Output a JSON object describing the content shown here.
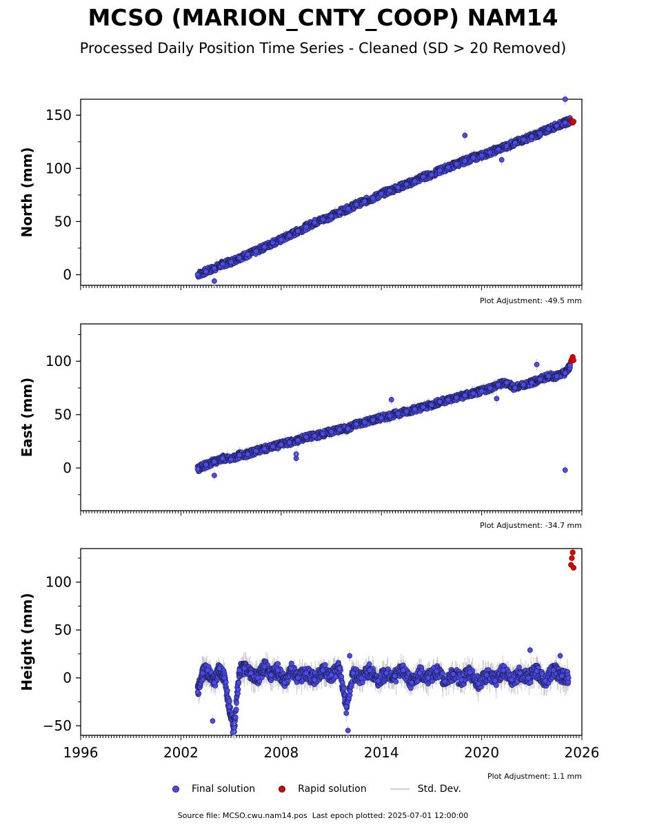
{
  "title": "MCSO (MARION_CNTY_COOP) NAM14",
  "subtitle": "Processed Daily Position Time Series - Cleaned (SD > 20 Removed)",
  "footer": {
    "source_file": "Source file: MCSO.cwu.nam14.pos",
    "last_epoch": "Last epoch plotted: 2025-07-01 12:00:00"
  },
  "legend": {
    "final": "Final solution",
    "rapid": "Rapid solution",
    "stddev": "Std. Dev."
  },
  "colors": {
    "final": "#4a4aef",
    "rapid": "#e00000",
    "stddev": "#c8c8c8",
    "edge": "#1a1a3a"
  },
  "chart_data": [
    {
      "type": "scatter",
      "ylabel": "North (mm)",
      "adjustment": "Plot Adjustment: -49.5 mm",
      "xlim": [
        1996,
        2026
      ],
      "ylim": [
        -10,
        165
      ],
      "yticks": [
        0,
        50,
        100,
        150
      ],
      "x_tick_labels": [],
      "final_series": {
        "name": "Final solution",
        "x": [
          2003.0,
          2003.5,
          2004.0,
          2004.5,
          2005.0,
          2005.5,
          2006.0,
          2006.5,
          2007.0,
          2007.5,
          2008.0,
          2008.5,
          2009.0,
          2009.5,
          2010.0,
          2010.5,
          2011.0,
          2011.5,
          2012.0,
          2012.5,
          2013.0,
          2013.5,
          2014.0,
          2014.5,
          2015.0,
          2015.5,
          2016.0,
          2016.5,
          2017.0,
          2017.5,
          2018.0,
          2018.5,
          2019.0,
          2019.5,
          2020.0,
          2020.5,
          2021.0,
          2021.5,
          2022.0,
          2022.5,
          2023.0,
          2023.5,
          2024.0,
          2024.5,
          2025.0,
          2025.3
        ],
        "y": [
          0,
          3,
          6,
          10,
          12,
          16,
          19,
          22,
          26,
          30,
          33,
          37,
          41,
          45,
          49,
          52,
          55,
          59,
          62,
          66,
          69,
          72,
          76,
          79,
          82,
          85,
          88,
          92,
          94,
          98,
          101,
          104,
          107,
          110,
          112,
          115,
          118,
          121,
          124,
          127,
          130,
          133,
          137,
          140,
          143,
          145
        ]
      },
      "rapid_series": {
        "name": "Rapid solution",
        "x": [
          2025.35,
          2025.4,
          2025.45,
          2025.5
        ],
        "y": [
          145,
          144,
          143,
          144
        ]
      },
      "outliers": {
        "x": [
          2004.0,
          2019.0,
          2021.2,
          2025.0
        ],
        "y": [
          -6,
          131,
          108,
          165
        ]
      }
    },
    {
      "type": "scatter",
      "ylabel": "East (mm)",
      "adjustment": "Plot Adjustment: -34.7 mm",
      "xlim": [
        1996,
        2026
      ],
      "ylim": [
        -40,
        135
      ],
      "yticks": [
        0,
        50,
        100
      ],
      "x_tick_labels": [],
      "final_series": {
        "name": "Final solution",
        "x": [
          2003.0,
          2003.5,
          2004.0,
          2004.5,
          2005.0,
          2005.5,
          2006.0,
          2006.5,
          2007.0,
          2007.5,
          2008.0,
          2008.5,
          2009.0,
          2009.5,
          2010.0,
          2010.5,
          2011.0,
          2011.5,
          2012.0,
          2012.5,
          2013.0,
          2013.5,
          2014.0,
          2014.5,
          2015.0,
          2015.5,
          2016.0,
          2016.5,
          2017.0,
          2017.5,
          2018.0,
          2018.5,
          2019.0,
          2019.5,
          2020.0,
          2020.5,
          2021.0,
          2021.5,
          2022.0,
          2022.5,
          2023.0,
          2023.5,
          2024.0,
          2024.5,
          2025.0,
          2025.3
        ],
        "y": [
          -1,
          3,
          6,
          9,
          8,
          12,
          13,
          16,
          18,
          20,
          22,
          24,
          26,
          29,
          30,
          32,
          34,
          36,
          37,
          41,
          43,
          45,
          47,
          49,
          51,
          53,
          55,
          57,
          59,
          62,
          64,
          66,
          68,
          70,
          72,
          75,
          78,
          80,
          75,
          78,
          80,
          83,
          86,
          86,
          89,
          96
        ]
      },
      "rapid_series": {
        "name": "Rapid solution",
        "x": [
          2025.35,
          2025.4,
          2025.45,
          2025.5
        ],
        "y": [
          100,
          102,
          104,
          101
        ]
      },
      "outliers": {
        "x": [
          2004.0,
          2008.9,
          2008.9,
          2014.6,
          2020.9,
          2023.3,
          2025.0
        ],
        "y": [
          -7,
          13,
          9,
          64,
          65,
          97,
          -2
        ]
      }
    },
    {
      "type": "scatter",
      "ylabel": "Height (mm)",
      "adjustment": "Plot Adjustment: 1.1 mm",
      "xlim": [
        1996,
        2026
      ],
      "ylim": [
        -60,
        135
      ],
      "yticks": [
        -50,
        0,
        50,
        100
      ],
      "x_tick_labels": [
        "1996",
        "2002",
        "2008",
        "2014",
        "2020",
        "2026"
      ],
      "final_series": {
        "name": "Final solution",
        "x": [
          2003.0,
          2003.3,
          2003.6,
          2004.0,
          2004.3,
          2004.6,
          2004.9,
          2005.2,
          2005.5,
          2005.8,
          2006.2,
          2006.6,
          2007.0,
          2007.4,
          2007.8,
          2008.2,
          2008.6,
          2009.0,
          2009.5,
          2010.0,
          2010.5,
          2011.0,
          2011.5,
          2011.9,
          2012.3,
          2012.8,
          2013.3,
          2013.8,
          2014.3,
          2014.8,
          2015.3,
          2015.8,
          2016.3,
          2016.8,
          2017.3,
          2017.8,
          2018.3,
          2018.8,
          2019.3,
          2019.8,
          2020.3,
          2020.8,
          2021.3,
          2021.8,
          2022.3,
          2022.8,
          2023.3,
          2023.8,
          2024.3,
          2024.8,
          2025.2
        ],
        "y": [
          -15,
          5,
          8,
          -5,
          10,
          0,
          -30,
          -50,
          8,
          10,
          5,
          0,
          12,
          3,
          8,
          -5,
          10,
          0,
          5,
          -2,
          8,
          3,
          10,
          -30,
          5,
          0,
          8,
          -3,
          5,
          2,
          8,
          -5,
          5,
          0,
          7,
          -4,
          4,
          -2,
          6,
          -6,
          3,
          -3,
          8,
          -2,
          5,
          0,
          7,
          -3,
          8,
          2,
          0
        ]
      },
      "rapid_series": {
        "name": "Rapid solution",
        "x": [
          2025.35,
          2025.4,
          2025.45,
          2025.5
        ],
        "y": [
          118,
          125,
          131,
          115
        ]
      },
      "outliers": {
        "x": [
          2003.9,
          2005.1,
          2005.2,
          2012.0,
          2012.1,
          2022.9,
          2024.7
        ],
        "y": [
          -45,
          -57,
          -52,
          -55,
          23,
          29,
          23
        ]
      }
    }
  ]
}
